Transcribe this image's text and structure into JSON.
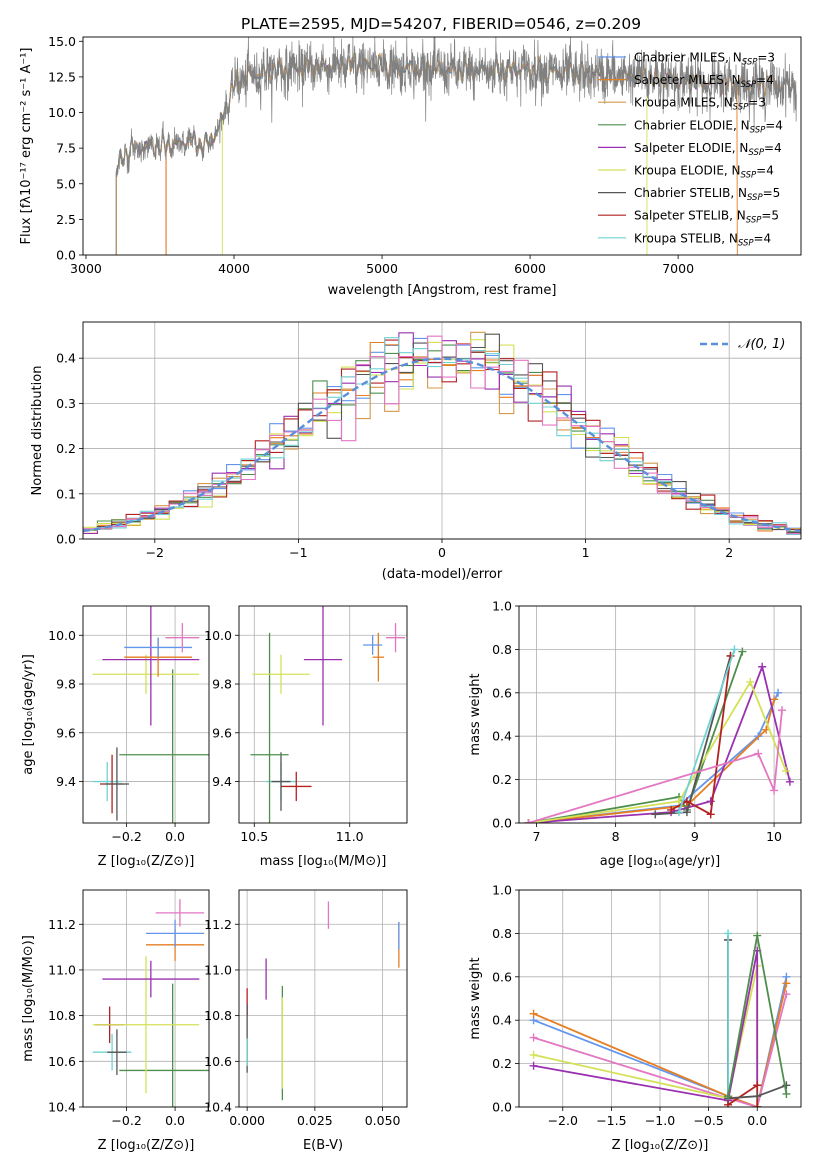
{
  "page": {
    "suptitle": "PLATE=2595, MJD=54207, FIBERID=0546, z=0.209"
  },
  "colors": {
    "chabrier_miles": "#6495ed",
    "salpeter_miles": "#e67e22",
    "kroupa_miles": "#d49a4a",
    "chabrier_elodie": "#4e8f4e",
    "salpeter_elodie": "#9b30b0",
    "kroupa_elodie": "#d4e157",
    "chabrier_stelib": "#555555",
    "salpeter_stelib": "#b22222",
    "kroupa_stelib": "#6fd3d3",
    "pink": "#e377c2",
    "spectrum": "#808080"
  },
  "chart_data": [
    {
      "id": "spectrum",
      "type": "line",
      "title": "PLATE=2595, MJD=54207, FIBERID=0546, z=0.209",
      "xlabel": "wavelength [Angstrom, rest frame]",
      "ylabel": "Flux [fλ10⁻¹⁷ erg cm⁻² s⁻¹ A⁻¹]",
      "xlim": [
        2980,
        7830
      ],
      "ylim": [
        0,
        15.3
      ],
      "xticks": [
        "3000",
        "4000",
        "5000",
        "6000",
        "7000"
      ],
      "yticks": [
        "0.0",
        "2.5",
        "5.0",
        "7.5",
        "10.0",
        "12.5",
        "15.0"
      ],
      "legend_position": "top-right",
      "legend": [
        {
          "label": "Chabrier MILES, N",
          "sub": "SSP",
          "tail": "=3",
          "color": "#6495ed"
        },
        {
          "label": "Salpeter MILES, N",
          "sub": "SSP",
          "tail": "=4",
          "color": "#e67e22"
        },
        {
          "label": "Kroupa MILES, N",
          "sub": "SSP",
          "tail": "=3",
          "color": "#d49a4a"
        },
        {
          "label": "Chabrier ELODIE, N",
          "sub": "SSP",
          "tail": "=4",
          "color": "#4e8f4e"
        },
        {
          "label": "Salpeter ELODIE, N",
          "sub": "SSP",
          "tail": "=4",
          "color": "#9b30b0"
        },
        {
          "label": "Kroupa ELODIE, N",
          "sub": "SSP",
          "tail": "=4",
          "color": "#d4e157"
        },
        {
          "label": "Chabrier STELIB, N",
          "sub": "SSP",
          "tail": "=5",
          "color": "#555555"
        },
        {
          "label": "Salpeter STELIB, N",
          "sub": "SSP",
          "tail": "=5",
          "color": "#b22222"
        },
        {
          "label": "Kroupa STELIB, N",
          "sub": "SSP",
          "tail": "=4",
          "color": "#6fd3d3"
        }
      ],
      "continuum": {
        "x": [
          3200,
          3250,
          3300,
          3400,
          3500,
          3600,
          3700,
          3800,
          3900,
          3950,
          4000,
          4100,
          4200,
          4300,
          4400,
          4600,
          4800,
          5000,
          5200,
          5400,
          5600,
          5800,
          6000,
          6200,
          6400,
          6600,
          6800,
          7000,
          7200,
          7400,
          7600,
          7800
        ],
        "y": [
          5.8,
          6.9,
          7.4,
          7.6,
          7.6,
          7.7,
          8.1,
          7.6,
          8.9,
          10.5,
          12.0,
          12.6,
          12.8,
          13.0,
          13.1,
          13.2,
          13.3,
          13.3,
          13.1,
          13.0,
          12.9,
          13.0,
          13.0,
          12.8,
          12.7,
          12.6,
          12.5,
          12.3,
          12.1,
          12.0,
          11.9,
          11.9
        ]
      },
      "model_starts": [
        {
          "series": "Kroupa STELIB",
          "start": 3200
        },
        {
          "series": "Salpeter STELIB",
          "start": 3540
        },
        {
          "series": "Salpeter MILES",
          "start": 3540
        },
        {
          "series": "Kroupa ELODIE",
          "start": 3920
        }
      ],
      "model_ends": [
        {
          "series": "Salpeter MILES",
          "end": 7400
        },
        {
          "series": "Kroupa ELODIE",
          "end": 6790
        }
      ]
    },
    {
      "id": "residuals",
      "type": "line",
      "xlabel": "(data-model)/error",
      "ylabel": "Normed distribution",
      "xlim": [
        -2.5,
        2.5
      ],
      "ylim": [
        0,
        0.48
      ],
      "xticks": [
        "−2",
        "−1",
        "0",
        "1",
        "2"
      ],
      "yticks": [
        "0.0",
        "0.1",
        "0.2",
        "0.3",
        "0.4"
      ],
      "legend": "𝒩(0, 1)",
      "bin_width": 0.1
    },
    {
      "id": "age_vs_Z",
      "type": "scatter",
      "xlabel": "Z [log₁₀(Z/Z⊙)]",
      "ylabel": "age  [log₁₀(age/yr)]",
      "xlim": [
        -0.38,
        0.14
      ],
      "ylim": [
        9.23,
        10.12
      ],
      "xticks": [
        -0.2,
        0.0
      ],
      "xticklabels": [
        "−0.2",
        "0.0"
      ],
      "yticks": [
        9.4,
        9.6,
        9.8,
        10.0
      ],
      "yticklabels": [
        "9.4",
        "9.6",
        "9.8",
        "10.0"
      ],
      "points": [
        {
          "x": -0.28,
          "y": 9.4,
          "xerr": 0.06,
          "yerr": 0.08,
          "color": "#6fd3d3"
        },
        {
          "x": -0.26,
          "y": 9.39,
          "xerr": 0.05,
          "yerr": 0.12,
          "color": "#b22222"
        },
        {
          "x": -0.24,
          "y": 9.39,
          "xerr": 0.05,
          "yerr": 0.15,
          "color": "#555555"
        },
        {
          "x": -0.01,
          "y": 9.51,
          "xerr": 0.22,
          "yerr": 0.35,
          "color": "#4e8f4e"
        },
        {
          "x": -0.12,
          "y": 9.84,
          "xerr": 0.22,
          "yerr": 0.08,
          "color": "#d4e157"
        },
        {
          "x": -0.1,
          "y": 9.9,
          "xerr": 0.2,
          "yerr": 0.27,
          "color": "#9b30b0"
        },
        {
          "x": -0.07,
          "y": 9.91,
          "xerr": 0.14,
          "yerr": 0.08,
          "color": "#e67e22"
        },
        {
          "x": -0.07,
          "y": 9.95,
          "xerr": 0.14,
          "yerr": 0.04,
          "color": "#6495ed"
        },
        {
          "x": 0.03,
          "y": 9.99,
          "xerr": 0.07,
          "yerr": 0.06,
          "color": "#e377c2"
        }
      ]
    },
    {
      "id": "age_vs_mass",
      "type": "scatter",
      "xlabel": "mass [log₁₀(M/M⊙)]",
      "xlim": [
        10.42,
        11.3
      ],
      "ylim": [
        9.23,
        10.12
      ],
      "xticks": [
        10.5,
        11.0
      ],
      "xticklabels": [
        "10.5",
        "11.0"
      ],
      "yticks": [
        9.4,
        9.6,
        9.8,
        10.0
      ],
      "yticklabels": [
        "9.4",
        "9.6",
        "9.8",
        "10.0"
      ],
      "points": [
        {
          "x": 10.64,
          "y": 9.4,
          "xerr": 0.08,
          "yerr": 0.08,
          "color": "#6fd3d3"
        },
        {
          "x": 10.72,
          "y": 9.38,
          "xerr": 0.08,
          "yerr": 0.06,
          "color": "#b22222"
        },
        {
          "x": 10.64,
          "y": 9.4,
          "xerr": 0.05,
          "yerr": 0.12,
          "color": "#555555"
        },
        {
          "x": 10.58,
          "y": 9.51,
          "xerr": 0.1,
          "yerr": 0.5,
          "color": "#4e8f4e"
        },
        {
          "x": 10.64,
          "y": 9.84,
          "xerr": 0.15,
          "yerr": 0.08,
          "color": "#d4e157"
        },
        {
          "x": 10.86,
          "y": 9.9,
          "xerr": 0.1,
          "yerr": 0.27,
          "color": "#9b30b0"
        },
        {
          "x": 11.15,
          "y": 9.91,
          "xerr": 0.03,
          "yerr": 0.1,
          "color": "#e67e22"
        },
        {
          "x": 11.12,
          "y": 9.96,
          "xerr": 0.05,
          "yerr": 0.04,
          "color": "#6495ed"
        },
        {
          "x": 11.24,
          "y": 9.99,
          "xerr": 0.05,
          "yerr": 0.06,
          "color": "#e377c2"
        }
      ]
    },
    {
      "id": "mass_weight_vs_age",
      "type": "line",
      "xlabel": "age  [log₁₀(age/yr)]",
      "ylabel": "mass weight",
      "xlim": [
        6.78,
        10.34
      ],
      "ylim": [
        0,
        1.0
      ],
      "xticks": [
        7,
        8,
        9,
        10
      ],
      "xticklabels": [
        "7",
        "8",
        "9",
        "10"
      ],
      "yticks": [
        0,
        0.2,
        0.4,
        0.6,
        0.8,
        1.0
      ],
      "yticklabels": [
        "0.0",
        "0.2",
        "0.4",
        "0.6",
        "0.8",
        "1.0"
      ],
      "series": [
        {
          "color": "#6495ed",
          "x": [
            6.9,
            8.8,
            9.8,
            10.05
          ],
          "y": [
            0.0,
            0.08,
            0.4,
            0.6
          ]
        },
        {
          "color": "#e67e22",
          "x": [
            6.9,
            8.9,
            9.9,
            10.0
          ],
          "y": [
            0.0,
            0.08,
            0.43,
            0.57
          ]
        },
        {
          "color": "#4e8f4e",
          "x": [
            6.9,
            8.8,
            8.9,
            9.6
          ],
          "y": [
            0.0,
            0.12,
            0.06,
            0.79
          ]
        },
        {
          "color": "#9b30b0",
          "x": [
            6.9,
            8.7,
            9.2,
            9.85,
            10.2
          ],
          "y": [
            0.0,
            0.05,
            0.1,
            0.72,
            0.19
          ]
        },
        {
          "color": "#d4e157",
          "x": [
            6.9,
            8.8,
            9.7,
            10.15
          ],
          "y": [
            0.0,
            0.1,
            0.65,
            0.24
          ]
        },
        {
          "color": "#555555",
          "x": [
            8.5,
            8.9,
            9.45
          ],
          "y": [
            0.04,
            0.05,
            0.77
          ]
        },
        {
          "color": "#b22222",
          "x": [
            8.7,
            8.9,
            9.2,
            9.45
          ],
          "y": [
            0.06,
            0.1,
            0.04,
            0.77
          ]
        },
        {
          "color": "#6fd3d3",
          "x": [
            8.8,
            9.5
          ],
          "y": [
            0.05,
            0.8
          ]
        },
        {
          "color": "#e377c2",
          "x": [
            6.9,
            9.8,
            10.0,
            10.1
          ],
          "y": [
            0.0,
            0.32,
            0.15,
            0.52
          ]
        }
      ]
    },
    {
      "id": "mass_vs_Z",
      "type": "scatter",
      "xlabel": "Z [log₁₀(Z/Z⊙)]",
      "ylabel": "mass [log₁₀(M/M⊙)]",
      "xlim": [
        -0.38,
        0.14
      ],
      "ylim": [
        10.4,
        11.35
      ],
      "xticks": [
        -0.2,
        0.0
      ],
      "xticklabels": [
        "−0.2",
        "0.0"
      ],
      "yticks": [
        10.4,
        10.6,
        10.8,
        11.0,
        11.2
      ],
      "yticklabels": [
        "10.4",
        "10.6",
        "10.8",
        "11.0",
        "11.2"
      ],
      "points": [
        {
          "x": -0.26,
          "y": 10.64,
          "xerr": 0.08,
          "yerr": 0.08,
          "color": "#6fd3d3"
        },
        {
          "x": -0.27,
          "y": 10.76,
          "xerr": 0.06,
          "yerr": 0.08,
          "color": "#b22222"
        },
        {
          "x": -0.24,
          "y": 10.64,
          "xerr": 0.04,
          "yerr": 0.1,
          "color": "#555555"
        },
        {
          "x": -0.01,
          "y": 10.56,
          "xerr": 0.22,
          "yerr": 0.38,
          "color": "#4e8f4e"
        },
        {
          "x": -0.12,
          "y": 10.76,
          "xerr": 0.22,
          "yerr": 0.3,
          "color": "#d4e157"
        },
        {
          "x": -0.1,
          "y": 10.96,
          "xerr": 0.2,
          "yerr": 0.08,
          "color": "#9b30b0"
        },
        {
          "x": 0.0,
          "y": 11.11,
          "xerr": 0.12,
          "yerr": 0.07,
          "color": "#e67e22"
        },
        {
          "x": 0.0,
          "y": 11.16,
          "xerr": 0.12,
          "yerr": 0.06,
          "color": "#6495ed"
        },
        {
          "x": 0.02,
          "y": 11.25,
          "xerr": 0.1,
          "yerr": 0.06,
          "color": "#e377c2"
        }
      ]
    },
    {
      "id": "mass_vs_ebv",
      "type": "scatter",
      "xlabel": "E(B-V)",
      "xlim": [
        -0.003,
        0.059
      ],
      "ylim": [
        10.4,
        11.35
      ],
      "xticks": [
        0.0,
        0.025,
        0.05
      ],
      "xticklabels": [
        "0.000",
        "0.025",
        "0.050"
      ],
      "yticks": [
        10.4,
        10.6,
        10.8,
        11.0,
        11.2
      ],
      "yticklabels": [
        "10.4",
        "10.6",
        "10.8",
        "11.0",
        "11.2"
      ],
      "points": [
        {
          "x": 0.0,
          "y": 10.86,
          "xerr": 0,
          "yerr": 0.06,
          "color": "#b22222"
        },
        {
          "x": 0.0,
          "y": 10.7,
          "xerr": 0,
          "yerr": 0.15,
          "color": "#555555"
        },
        {
          "x": 0.0,
          "y": 10.64,
          "xerr": 0,
          "yerr": 0.06,
          "color": "#6fd3d3"
        },
        {
          "x": 0.007,
          "y": 10.96,
          "xerr": 0,
          "yerr": 0.09,
          "color": "#9b30b0"
        },
        {
          "x": 0.013,
          "y": 10.68,
          "xerr": 0,
          "yerr": 0.25,
          "color": "#4e8f4e"
        },
        {
          "x": 0.013,
          "y": 10.68,
          "xerr": 0,
          "yerr": 0.2,
          "color": "#d4e157"
        },
        {
          "x": 0.03,
          "y": 11.24,
          "xerr": 0,
          "yerr": 0.06,
          "color": "#e377c2"
        },
        {
          "x": 0.056,
          "y": 11.11,
          "xerr": 0,
          "yerr": 0.1,
          "color": "#e67e22"
        },
        {
          "x": 0.056,
          "y": 11.15,
          "xerr": 0,
          "yerr": 0.06,
          "color": "#6495ed"
        }
      ]
    },
    {
      "id": "mass_weight_vs_Z",
      "type": "line",
      "xlabel": "Z [log₁₀(Z/Z⊙)]",
      "ylabel": "mass weight",
      "xlim": [
        -2.45,
        0.45
      ],
      "ylim": [
        0,
        1.0
      ],
      "xticks": [
        -2.0,
        -1.5,
        -1.0,
        -0.5,
        0.0
      ],
      "xticklabels": [
        "−2.0",
        "−1.5",
        "−1.0",
        "−0.5",
        "0.0"
      ],
      "yticks": [
        0,
        0.2,
        0.4,
        0.6,
        0.8,
        1.0
      ],
      "yticklabels": [
        "0.0",
        "0.2",
        "0.4",
        "0.6",
        "0.8",
        "1.0"
      ],
      "series": [
        {
          "color": "#6495ed",
          "x": [
            -2.3,
            -0.3,
            0.0,
            0.3
          ],
          "y": [
            0.4,
            0.05,
            0.0,
            0.6
          ]
        },
        {
          "color": "#e67e22",
          "x": [
            -2.3,
            -0.3,
            0.0,
            0.3
          ],
          "y": [
            0.43,
            0.05,
            0.0,
            0.57
          ]
        },
        {
          "color": "#e377c2",
          "x": [
            -2.3,
            -0.3,
            0.0,
            0.3
          ],
          "y": [
            0.32,
            0.04,
            0.0,
            0.52
          ]
        },
        {
          "color": "#d4e157",
          "x": [
            -2.3,
            -0.3,
            0.0,
            0.0
          ],
          "y": [
            0.24,
            0.04,
            0.65,
            0.0
          ]
        },
        {
          "color": "#9b30b0",
          "x": [
            -2.3,
            -0.3,
            0.0,
            0.0
          ],
          "y": [
            0.19,
            0.03,
            0.72,
            0.1
          ]
        },
        {
          "color": "#b22222",
          "x": [
            -0.3,
            -0.3,
            0.0,
            0.0
          ],
          "y": [
            0.77,
            0.01,
            0.1,
            0.0
          ]
        },
        {
          "color": "#555555",
          "x": [
            -0.3,
            -0.3,
            0.0,
            0.3
          ],
          "y": [
            0.77,
            0.04,
            0.05,
            0.1
          ]
        },
        {
          "color": "#6fd3d3",
          "x": [
            -0.3,
            -0.3
          ],
          "y": [
            0.8,
            0.05
          ]
        },
        {
          "color": "#4e8f4e",
          "x": [
            -0.3,
            0.0,
            0.3
          ],
          "y": [
            0.05,
            0.79,
            0.06
          ]
        }
      ]
    }
  ]
}
